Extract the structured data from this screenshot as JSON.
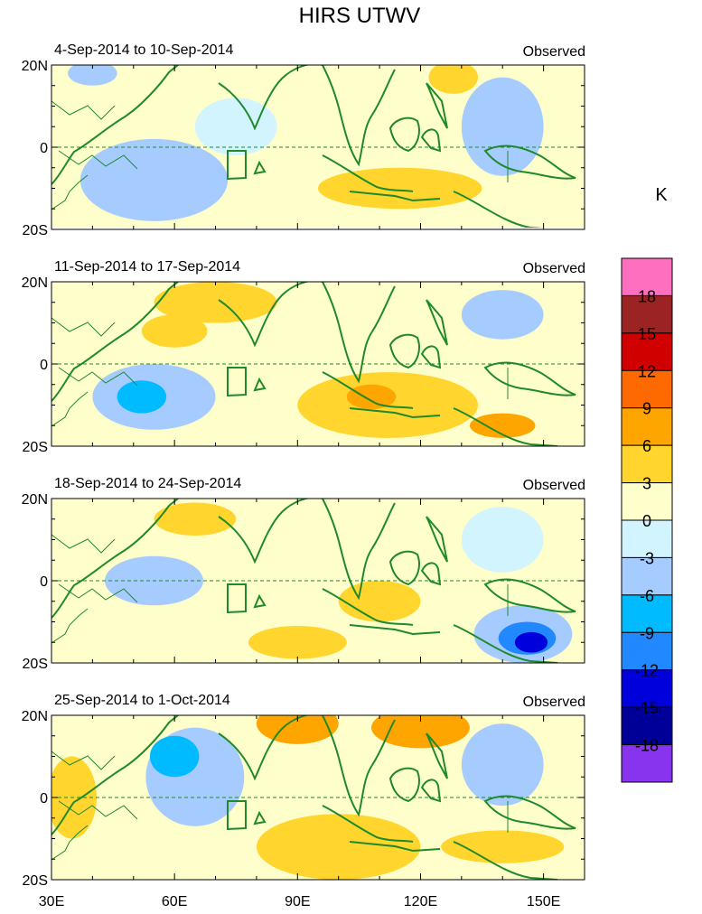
{
  "chart_data": {
    "type": "heatmap",
    "title": "HIRS UTWV",
    "units": "K",
    "x_ticks": [
      "30E",
      "60E",
      "90E",
      "120E",
      "150E"
    ],
    "x_tick_values": [
      30,
      60,
      90,
      120,
      150
    ],
    "xlim": [
      30,
      160
    ],
    "y_ticks": [
      "20N",
      "0",
      "20S"
    ],
    "y_tick_values": [
      20,
      0,
      -20
    ],
    "ylim": [
      -20,
      20
    ],
    "colorbar": {
      "levels": [
        "18",
        "15",
        "12",
        "9",
        "6",
        "3",
        "0",
        "-3",
        "-6",
        "-9",
        "-12",
        "-15",
        "-18"
      ],
      "colors": [
        "#ff6fbf",
        "#9b2323",
        "#d10000",
        "#ff6a00",
        "#ffa500",
        "#ffd52e",
        "#ffffcc",
        "#d2f4ff",
        "#a6ccff",
        "#00bbff",
        "#2288ff",
        "#0000dd",
        "#000099",
        "#8833ee"
      ]
    },
    "panels": [
      {
        "period": "4-Sep-2014 to 10-Sep-2014",
        "label": "Observed",
        "blobs": [
          {
            "lon": 55,
            "lat": -8,
            "rlon": 18,
            "rlat": 10,
            "v": -4
          },
          {
            "lon": 140,
            "lat": 5,
            "rlon": 10,
            "rlat": 12,
            "v": -4
          },
          {
            "lon": 115,
            "lat": -10,
            "rlon": 20,
            "rlat": 5,
            "v": 4
          },
          {
            "lon": 128,
            "lat": 17,
            "rlon": 6,
            "rlat": 4,
            "v": 4
          },
          {
            "lon": 40,
            "lat": 18,
            "rlon": 6,
            "rlat": 3,
            "v": -4
          },
          {
            "lon": 75,
            "lat": 5,
            "rlon": 10,
            "rlat": 7,
            "v": -2
          }
        ]
      },
      {
        "period": "11-Sep-2014 to 17-Sep-2014",
        "label": "Observed",
        "blobs": [
          {
            "lon": 55,
            "lat": -8,
            "rlon": 15,
            "rlat": 8,
            "v": -4
          },
          {
            "lon": 52,
            "lat": -8,
            "rlon": 6,
            "rlat": 4,
            "v": -7
          },
          {
            "lon": 112,
            "lat": -10,
            "rlon": 22,
            "rlat": 8,
            "v": 4
          },
          {
            "lon": 108,
            "lat": -8,
            "rlon": 6,
            "rlat": 3,
            "v": 7
          },
          {
            "lon": 140,
            "lat": -15,
            "rlon": 8,
            "rlat": 3,
            "v": 7
          },
          {
            "lon": 70,
            "lat": 15,
            "rlon": 15,
            "rlat": 5,
            "v": 4
          },
          {
            "lon": 140,
            "lat": 12,
            "rlon": 10,
            "rlat": 6,
            "v": -4
          },
          {
            "lon": 60,
            "lat": 8,
            "rlon": 8,
            "rlat": 4,
            "v": 4
          }
        ]
      },
      {
        "period": "18-Sep-2014 to 24-Sep-2014",
        "label": "Observed",
        "blobs": [
          {
            "lon": 145,
            "lat": -13,
            "rlon": 12,
            "rlat": 7,
            "v": -5
          },
          {
            "lon": 146,
            "lat": -14,
            "rlon": 7,
            "rlat": 4,
            "v": -10
          },
          {
            "lon": 147,
            "lat": -15,
            "rlon": 4,
            "rlat": 2.5,
            "v": -15
          },
          {
            "lon": 90,
            "lat": -15,
            "rlon": 12,
            "rlat": 4,
            "v": 5
          },
          {
            "lon": 110,
            "lat": -5,
            "rlon": 10,
            "rlat": 5,
            "v": 4
          },
          {
            "lon": 55,
            "lat": 0,
            "rlon": 12,
            "rlat": 6,
            "v": -4
          },
          {
            "lon": 140,
            "lat": 10,
            "rlon": 10,
            "rlat": 8,
            "v": -3
          },
          {
            "lon": 65,
            "lat": 15,
            "rlon": 10,
            "rlat": 4,
            "v": 4
          }
        ]
      },
      {
        "period": "25-Sep-2014 to 1-Oct-2014",
        "label": "Observed",
        "blobs": [
          {
            "lon": 90,
            "lat": 18,
            "rlon": 10,
            "rlat": 5,
            "v": 6
          },
          {
            "lon": 120,
            "lat": 17,
            "rlon": 12,
            "rlat": 5,
            "v": 6
          },
          {
            "lon": 100,
            "lat": -12,
            "rlon": 20,
            "rlat": 8,
            "v": 5
          },
          {
            "lon": 35,
            "lat": 0,
            "rlon": 6,
            "rlat": 10,
            "v": 5
          },
          {
            "lon": 65,
            "lat": 5,
            "rlon": 12,
            "rlat": 12,
            "v": -4
          },
          {
            "lon": 60,
            "lat": 10,
            "rlon": 6,
            "rlat": 5,
            "v": -7
          },
          {
            "lon": 140,
            "lat": 8,
            "rlon": 10,
            "rlat": 10,
            "v": -4
          },
          {
            "lon": 140,
            "lat": -12,
            "rlon": 15,
            "rlat": 4,
            "v": 4
          }
        ]
      }
    ]
  }
}
